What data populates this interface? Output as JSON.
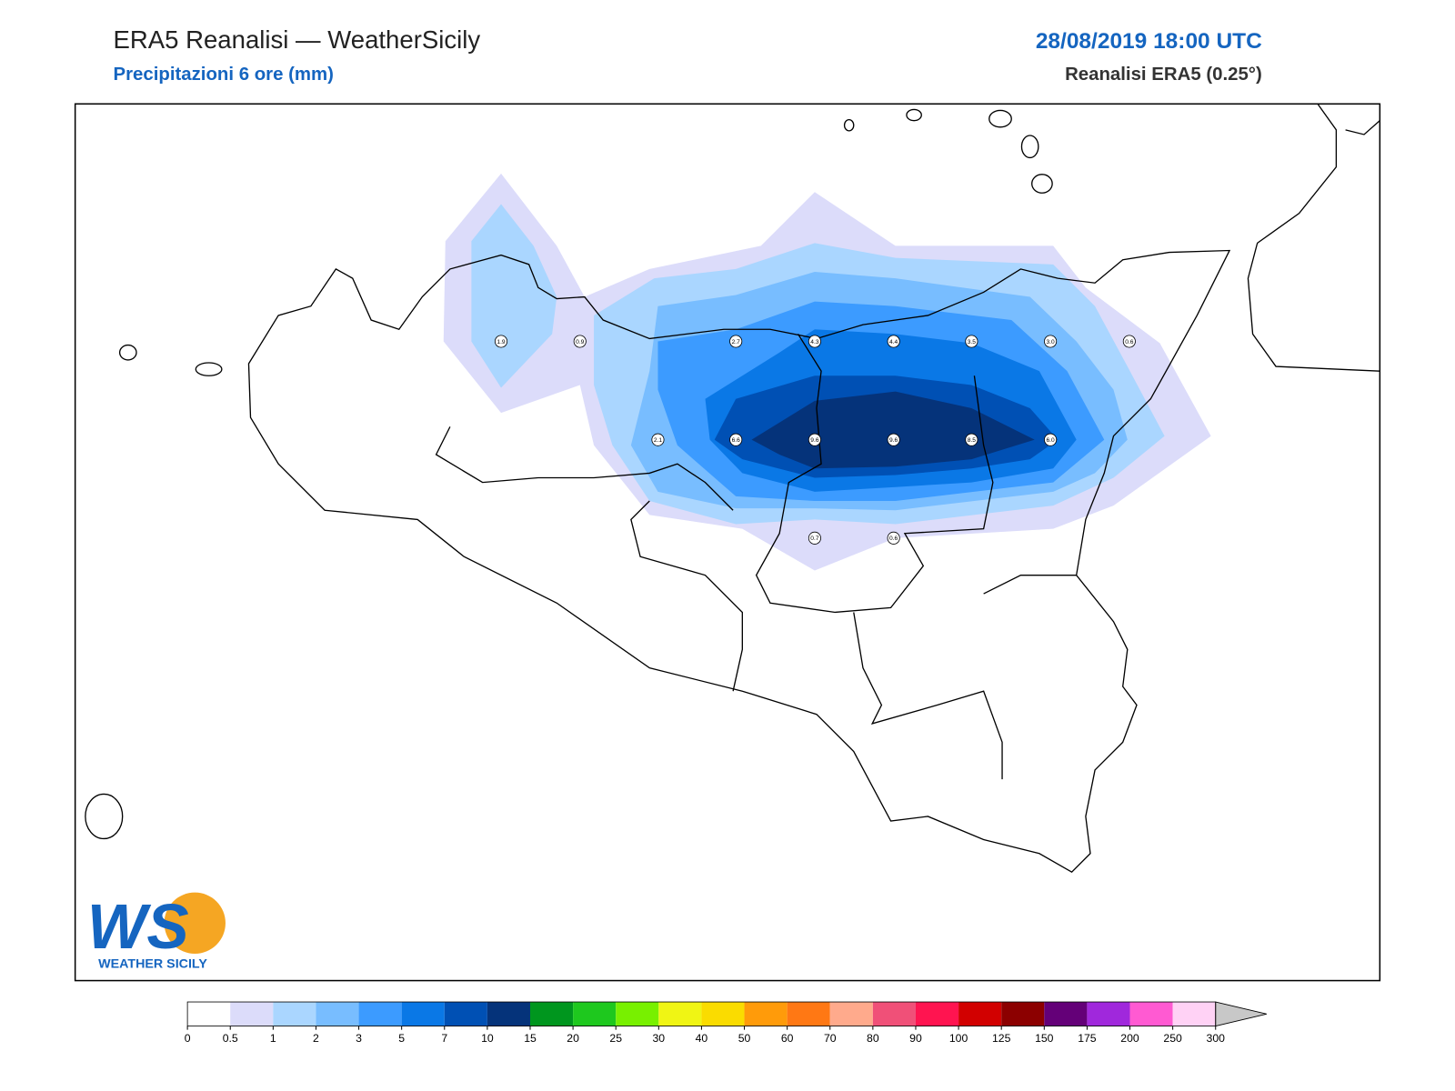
{
  "header": {
    "title": "ERA5 Reanalisi — WeatherSicily",
    "subtitle": "Precipitazioni 6 ore (mm)",
    "date": "28/08/2019 18:00 UTC",
    "model": "Reanalisi ERA5 (0.25°)"
  },
  "stations": [
    "1.9",
    "0.9",
    "2.7",
    "4.3",
    "4.4",
    "3.5",
    "3.0",
    "0.6",
    "2.1",
    "6.6",
    "9.6",
    "9.6",
    "8.5",
    "6.0",
    "0.7",
    "0.6"
  ],
  "logo": {
    "mark": "WS",
    "name": "WEATHER SICILY"
  },
  "colorbar": {
    "levels": [
      0,
      0.5,
      1,
      2,
      3,
      5,
      7,
      10,
      15,
      20,
      25,
      30,
      40,
      50,
      60,
      70,
      80,
      90,
      100,
      125,
      150,
      175,
      200,
      250,
      300
    ],
    "colors": [
      "#ffffff",
      "#dcdcfa",
      "#aad6ff",
      "#78bdff",
      "#3c9bff",
      "#0a78e6",
      "#0050b4",
      "#05337a",
      "#00961e",
      "#1ec81e",
      "#78f000",
      "#f0f514",
      "#fadc00",
      "#ff9b0a",
      "#ff7814",
      "#ffaa8c",
      "#f05078",
      "#ff1450",
      "#d20000",
      "#8c0000",
      "#640078",
      "#a028dc",
      "#ff5ad2",
      "#ffd2f5"
    ],
    "extend_color": "#c8c8c8"
  }
}
